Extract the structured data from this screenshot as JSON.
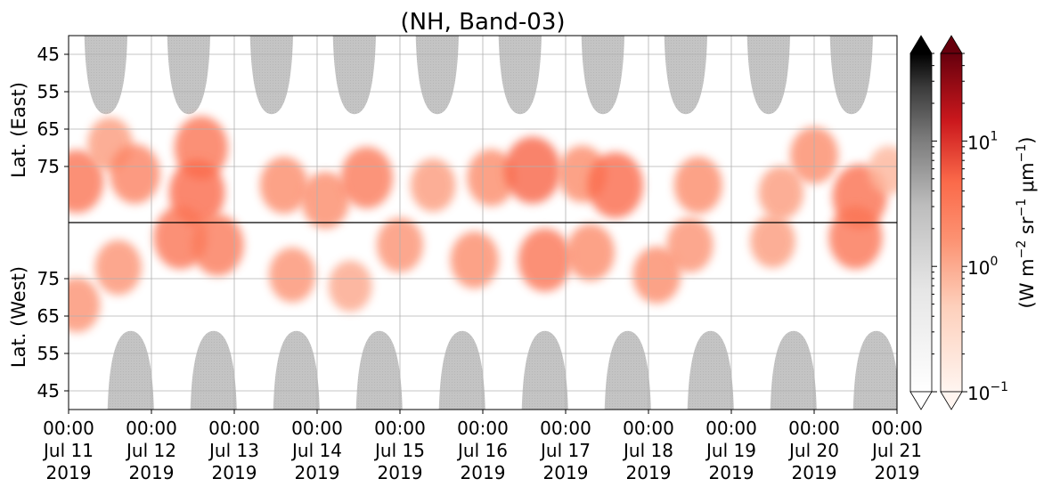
{
  "chart_data": {
    "type": "heatmap",
    "title": "(NH, Band-03)",
    "x_tick_labels": [
      [
        "00:00",
        "Jul 11",
        "2019"
      ],
      [
        "00:00",
        "Jul 12",
        "2019"
      ],
      [
        "00:00",
        "Jul 13",
        "2019"
      ],
      [
        "00:00",
        "Jul 14",
        "2019"
      ],
      [
        "00:00",
        "Jul 15",
        "2019"
      ],
      [
        "00:00",
        "Jul 16",
        "2019"
      ],
      [
        "00:00",
        "Jul 17",
        "2019"
      ],
      [
        "00:00",
        "Jul 18",
        "2019"
      ],
      [
        "00:00",
        "Jul 19",
        "2019"
      ],
      [
        "00:00",
        "Jul 20",
        "2019"
      ],
      [
        "00:00",
        "Jul 21",
        "2019"
      ]
    ],
    "x_range_days": [
      0,
      10
    ],
    "y_axis_top": {
      "label": "Lat. (East)",
      "range": [
        40,
        90
      ],
      "tick_values": [
        45,
        55,
        65,
        75
      ],
      "tick_labels": [
        "45",
        "55",
        "65",
        "75"
      ]
    },
    "y_axis_bottom": {
      "label": "Lat. (West)",
      "range": [
        90,
        40
      ],
      "tick_values": [
        75,
        65,
        55,
        45
      ],
      "tick_labels": [
        "75",
        "65",
        "55",
        "45"
      ]
    },
    "divider_latitude": 90,
    "grid": true,
    "colorbar_gray": {
      "colormap": "Greys",
      "scale": "log",
      "range": [
        0.1,
        50
      ],
      "extend": "both",
      "tick_labels": []
    },
    "colorbar_red": {
      "colormap": "Reds",
      "scale": "log",
      "range": [
        0.1,
        50
      ],
      "extend": "both",
      "tick_values": [
        0.1,
        1,
        10
      ],
      "tick_bases": [
        "10",
        "10",
        "10"
      ],
      "tick_exponents": [
        "−1",
        "0",
        "1"
      ],
      "label_parts": [
        "(W m",
        "−2",
        " sr",
        "−1",
        " μm",
        "−1",
        ")"
      ]
    },
    "daylight_masks_east": [
      {
        "center_day": 0.45,
        "max_extent_lat": 61
      },
      {
        "center_day": 1.45,
        "max_extent_lat": 61
      },
      {
        "center_day": 2.45,
        "max_extent_lat": 61
      },
      {
        "center_day": 3.45,
        "max_extent_lat": 61
      },
      {
        "center_day": 4.45,
        "max_extent_lat": 61
      },
      {
        "center_day": 5.45,
        "max_extent_lat": 61
      },
      {
        "center_day": 6.45,
        "max_extent_lat": 61
      },
      {
        "center_day": 7.45,
        "max_extent_lat": 61
      },
      {
        "center_day": 8.45,
        "max_extent_lat": 61
      },
      {
        "center_day": 9.45,
        "max_extent_lat": 61
      }
    ],
    "daylight_masks_west": [
      {
        "center_day": 0.75,
        "max_extent_lat": 61
      },
      {
        "center_day": 1.75,
        "max_extent_lat": 61
      },
      {
        "center_day": 2.75,
        "max_extent_lat": 61
      },
      {
        "center_day": 3.75,
        "max_extent_lat": 61
      },
      {
        "center_day": 4.75,
        "max_extent_lat": 61
      },
      {
        "center_day": 5.75,
        "max_extent_lat": 61
      },
      {
        "center_day": 6.75,
        "max_extent_lat": 61
      },
      {
        "center_day": 7.75,
        "max_extent_lat": 61
      },
      {
        "center_day": 8.75,
        "max_extent_lat": 61
      },
      {
        "center_day": 9.75,
        "max_extent_lat": 61
      }
    ],
    "emission_blobs": [
      {
        "hemisphere": "east",
        "day": 0.1,
        "lat": 79,
        "value": 3.0
      },
      {
        "hemisphere": "east",
        "day": 0.5,
        "lat": 69,
        "value": 1.0
      },
      {
        "hemisphere": "east",
        "day": 0.8,
        "lat": 77,
        "value": 2.0
      },
      {
        "hemisphere": "east",
        "day": 1.6,
        "lat": 70,
        "value": 3.0
      },
      {
        "hemisphere": "east",
        "day": 1.55,
        "lat": 82,
        "value": 4.0
      },
      {
        "hemisphere": "east",
        "day": 2.6,
        "lat": 80,
        "value": 1.5
      },
      {
        "hemisphere": "east",
        "day": 3.1,
        "lat": 84,
        "value": 1.5
      },
      {
        "hemisphere": "east",
        "day": 3.6,
        "lat": 78,
        "value": 2.5
      },
      {
        "hemisphere": "east",
        "day": 4.4,
        "lat": 80,
        "value": 1.0
      },
      {
        "hemisphere": "east",
        "day": 5.1,
        "lat": 78,
        "value": 1.5
      },
      {
        "hemisphere": "east",
        "day": 5.6,
        "lat": 76,
        "value": 4.5
      },
      {
        "hemisphere": "east",
        "day": 6.2,
        "lat": 77,
        "value": 1.5
      },
      {
        "hemisphere": "east",
        "day": 6.6,
        "lat": 80,
        "value": 4.0
      },
      {
        "hemisphere": "east",
        "day": 7.6,
        "lat": 80,
        "value": 1.5
      },
      {
        "hemisphere": "east",
        "day": 8.6,
        "lat": 82,
        "value": 1.0
      },
      {
        "hemisphere": "east",
        "day": 9.0,
        "lat": 72,
        "value": 1.5
      },
      {
        "hemisphere": "east",
        "day": 9.55,
        "lat": 83,
        "value": 3.5
      },
      {
        "hemisphere": "east",
        "day": 9.9,
        "lat": 76,
        "value": 0.6
      },
      {
        "hemisphere": "west",
        "day": 0.1,
        "lat": 68,
        "value": 1.2
      },
      {
        "hemisphere": "west",
        "day": 0.6,
        "lat": 78,
        "value": 1.2
      },
      {
        "hemisphere": "west",
        "day": 1.35,
        "lat": 86,
        "value": 3.0
      },
      {
        "hemisphere": "west",
        "day": 1.8,
        "lat": 84,
        "value": 2.5
      },
      {
        "hemisphere": "west",
        "day": 2.7,
        "lat": 76,
        "value": 1.2
      },
      {
        "hemisphere": "west",
        "day": 3.4,
        "lat": 73,
        "value": 0.8
      },
      {
        "hemisphere": "west",
        "day": 4.0,
        "lat": 84,
        "value": 1.2
      },
      {
        "hemisphere": "west",
        "day": 4.9,
        "lat": 80,
        "value": 1.5
      },
      {
        "hemisphere": "west",
        "day": 5.75,
        "lat": 80,
        "value": 3.0
      },
      {
        "hemisphere": "west",
        "day": 6.3,
        "lat": 82,
        "value": 1.5
      },
      {
        "hemisphere": "west",
        "day": 7.1,
        "lat": 76,
        "value": 1.5
      },
      {
        "hemisphere": "west",
        "day": 7.5,
        "lat": 84,
        "value": 1.2
      },
      {
        "hemisphere": "west",
        "day": 8.5,
        "lat": 85,
        "value": 1.0
      },
      {
        "hemisphere": "west",
        "day": 9.5,
        "lat": 86,
        "value": 3.0
      }
    ]
  }
}
